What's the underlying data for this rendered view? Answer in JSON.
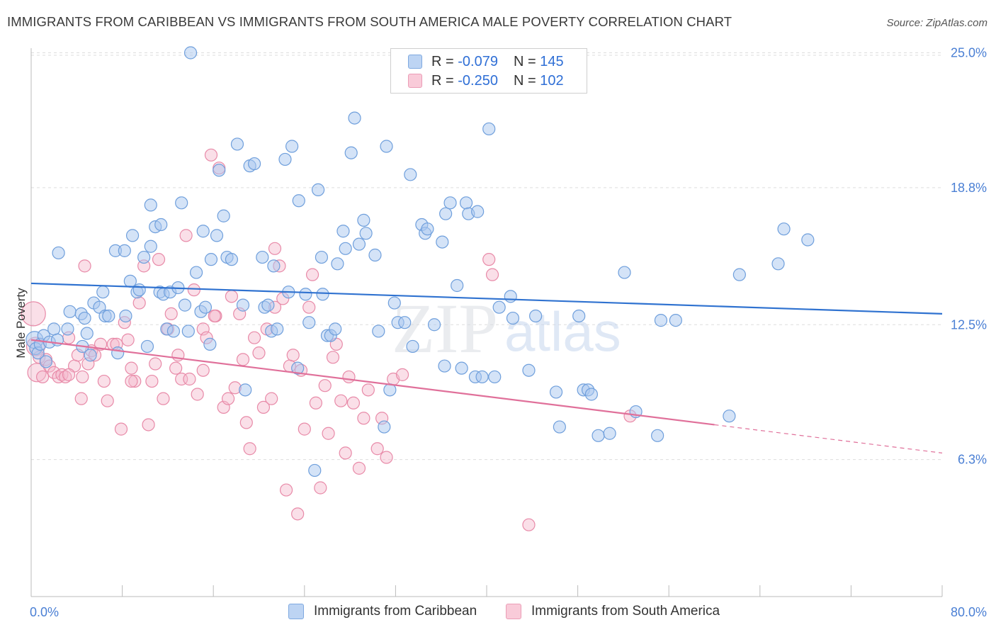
{
  "title": "IMMIGRANTS FROM CARIBBEAN VS IMMIGRANTS FROM SOUTH AMERICA MALE POVERTY CORRELATION CHART",
  "source": "Source: ZipAtlas.com",
  "watermark": {
    "zip": "ZIP",
    "atlas": "atlas"
  },
  "legend": {
    "rows": [
      {
        "r_label": "R = ",
        "r_value": "-0.079",
        "n_label": "N = ",
        "n_value": "145"
      },
      {
        "r_label": "R = ",
        "r_value": "-0.250",
        "n_label": "N = ",
        "n_value": "102"
      }
    ]
  },
  "colors": {
    "blue_fill": "#aac8f0",
    "blue_stroke": "#6f9fdc",
    "blue_line": "#2f72d0",
    "pink_fill": "#f5b8cc",
    "pink_stroke": "#e88aa8",
    "pink_line": "#e0709a",
    "axis_text": "#4a7fd4",
    "grid": "#dddddd"
  },
  "chart_data": {
    "type": "scatter",
    "title": "IMMIGRANTS FROM CARIBBEAN VS IMMIGRANTS FROM SOUTH AMERICA MALE POVERTY CORRELATION CHART",
    "xlabel": "",
    "ylabel": "Male Poverty",
    "xlim": [
      0,
      80
    ],
    "ylim": [
      0,
      26.5
    ],
    "x_tick_labels": [
      "0.0%",
      "80.0%"
    ],
    "y_ticks": [
      6.3,
      12.5,
      18.8,
      25.0
    ],
    "y_tick_labels": [
      "6.3%",
      "12.5%",
      "18.8%",
      "25.0%"
    ],
    "grid": true,
    "legend_position": "top-center",
    "series": [
      {
        "name": "Immigrants from Caribbean",
        "color": "#aac8f0",
        "trend": {
          "x": [
            0,
            80
          ],
          "y": [
            14.4,
            13.0
          ]
        },
        "points": [
          [
            0.3,
            11.8
          ],
          [
            0.4,
            11.4
          ],
          [
            0.6,
            11.2
          ],
          [
            0.8,
            11.6
          ],
          [
            1.1,
            12.0
          ],
          [
            1.3,
            10.8
          ],
          [
            1.6,
            11.7
          ],
          [
            2.0,
            12.3
          ],
          [
            2.3,
            11.8
          ],
          [
            2.4,
            15.8
          ],
          [
            3.2,
            12.3
          ],
          [
            3.4,
            13.1
          ],
          [
            4.4,
            13.0
          ],
          [
            4.5,
            11.5
          ],
          [
            4.7,
            12.8
          ],
          [
            4.9,
            12.1
          ],
          [
            5.2,
            11.1
          ],
          [
            5.5,
            13.5
          ],
          [
            6.0,
            13.3
          ],
          [
            6.3,
            14.0
          ],
          [
            6.5,
            12.9
          ],
          [
            6.8,
            12.9
          ],
          [
            7.4,
            15.9
          ],
          [
            7.6,
            11.2
          ],
          [
            8.2,
            15.9
          ],
          [
            8.3,
            12.9
          ],
          [
            8.7,
            14.5
          ],
          [
            8.9,
            16.6
          ],
          [
            9.3,
            14.0
          ],
          [
            9.5,
            14.1
          ],
          [
            9.9,
            15.6
          ],
          [
            10.2,
            11.5
          ],
          [
            10.5,
            16.1
          ],
          [
            10.5,
            18.0
          ],
          [
            10.9,
            17.0
          ],
          [
            11.3,
            14.0
          ],
          [
            11.4,
            17.1
          ],
          [
            11.6,
            13.9
          ],
          [
            11.9,
            12.3
          ],
          [
            12.2,
            14.0
          ],
          [
            12.5,
            12.2
          ],
          [
            12.9,
            14.2
          ],
          [
            13.2,
            18.1
          ],
          [
            13.5,
            13.4
          ],
          [
            13.8,
            12.2
          ],
          [
            14.0,
            25.0
          ],
          [
            14.5,
            14.9
          ],
          [
            14.9,
            13.1
          ],
          [
            15.1,
            16.8
          ],
          [
            15.3,
            13.3
          ],
          [
            15.7,
            11.6
          ],
          [
            15.8,
            15.5
          ],
          [
            16.3,
            16.6
          ],
          [
            16.5,
            19.6
          ],
          [
            16.9,
            17.5
          ],
          [
            17.2,
            15.6
          ],
          [
            17.6,
            15.5
          ],
          [
            18.1,
            20.8
          ],
          [
            18.6,
            13.4
          ],
          [
            18.8,
            9.5
          ],
          [
            19.2,
            19.8
          ],
          [
            19.6,
            19.9
          ],
          [
            20.3,
            15.6
          ],
          [
            20.5,
            13.3
          ],
          [
            20.8,
            13.4
          ],
          [
            21.1,
            12.2
          ],
          [
            21.3,
            15.2
          ],
          [
            21.6,
            12.3
          ],
          [
            22.3,
            20.1
          ],
          [
            22.6,
            14.0
          ],
          [
            22.9,
            20.7
          ],
          [
            23.4,
            10.5
          ],
          [
            23.5,
            18.2
          ],
          [
            24.1,
            13.9
          ],
          [
            24.4,
            12.6
          ],
          [
            24.9,
            5.8
          ],
          [
            25.2,
            18.7
          ],
          [
            25.5,
            15.6
          ],
          [
            25.6,
            13.9
          ],
          [
            26.0,
            12.0
          ],
          [
            26.3,
            12.0
          ],
          [
            26.7,
            12.3
          ],
          [
            26.9,
            15.3
          ],
          [
            27.4,
            16.8
          ],
          [
            27.6,
            16.0
          ],
          [
            28.1,
            20.4
          ],
          [
            28.4,
            22.0
          ],
          [
            28.8,
            16.2
          ],
          [
            29.2,
            17.3
          ],
          [
            29.4,
            16.7
          ],
          [
            30.2,
            15.7
          ],
          [
            30.5,
            12.2
          ],
          [
            31.0,
            7.8
          ],
          [
            31.2,
            20.7
          ],
          [
            31.5,
            9.5
          ],
          [
            31.9,
            13.5
          ],
          [
            32.2,
            12.6
          ],
          [
            32.8,
            12.6
          ],
          [
            33.3,
            19.4
          ],
          [
            33.5,
            11.5
          ],
          [
            34.3,
            17.1
          ],
          [
            34.6,
            16.7
          ],
          [
            34.8,
            16.9
          ],
          [
            35.4,
            12.5
          ],
          [
            36.1,
            16.3
          ],
          [
            36.3,
            10.6
          ],
          [
            36.4,
            17.6
          ],
          [
            36.8,
            18.1
          ],
          [
            37.4,
            14.3
          ],
          [
            37.8,
            10.5
          ],
          [
            38.2,
            18.1
          ],
          [
            38.4,
            17.6
          ],
          [
            39.0,
            10.1
          ],
          [
            39.2,
            17.7
          ],
          [
            39.6,
            10.1
          ],
          [
            40.2,
            21.5
          ],
          [
            40.7,
            10.1
          ],
          [
            41.1,
            13.3
          ],
          [
            42.1,
            13.8
          ],
          [
            42.3,
            12.8
          ],
          [
            43.7,
            10.4
          ],
          [
            44.3,
            12.9
          ],
          [
            46.1,
            9.4
          ],
          [
            46.4,
            7.8
          ],
          [
            48.1,
            12.9
          ],
          [
            48.5,
            9.5
          ],
          [
            48.9,
            9.5
          ],
          [
            49.2,
            9.3
          ],
          [
            49.8,
            7.4
          ],
          [
            50.8,
            7.5
          ],
          [
            52.1,
            14.9
          ],
          [
            53.1,
            8.5
          ],
          [
            55.0,
            7.4
          ],
          [
            55.3,
            12.7
          ],
          [
            56.6,
            12.7
          ],
          [
            61.3,
            8.3
          ],
          [
            62.2,
            14.8
          ],
          [
            65.6,
            15.3
          ],
          [
            66.1,
            16.9
          ],
          [
            68.2,
            16.4
          ]
        ]
      },
      {
        "name": "Immigrants from South America",
        "color": "#f5b8cc",
        "trend": {
          "x": [
            0,
            60
          ],
          "y": [
            11.8,
            7.9
          ],
          "dashed_to": {
            "x": 80,
            "y": 6.6
          }
        },
        "points": [
          [
            0.2,
            13.0
          ],
          [
            0.4,
            11.5
          ],
          [
            0.5,
            10.3
          ],
          [
            0.7,
            11.0
          ],
          [
            1.0,
            10.1
          ],
          [
            1.3,
            10.9
          ],
          [
            1.6,
            10.6
          ],
          [
            2.0,
            10.3
          ],
          [
            2.4,
            10.1
          ],
          [
            2.7,
            10.2
          ],
          [
            3.0,
            10.1
          ],
          [
            3.3,
            11.9
          ],
          [
            3.8,
            10.6
          ],
          [
            4.1,
            11.1
          ],
          [
            4.4,
            9.1
          ],
          [
            4.7,
            15.2
          ],
          [
            5.0,
            10.7
          ],
          [
            5.3,
            11.3
          ],
          [
            5.6,
            11.1
          ],
          [
            6.1,
            11.6
          ],
          [
            6.4,
            9.9
          ],
          [
            6.7,
            9.0
          ],
          [
            7.2,
            11.6
          ],
          [
            7.5,
            11.6
          ],
          [
            7.9,
            7.7
          ],
          [
            8.2,
            12.6
          ],
          [
            8.5,
            11.8
          ],
          [
            8.8,
            10.5
          ],
          [
            9.1,
            9.9
          ],
          [
            9.5,
            13.5
          ],
          [
            9.9,
            15.2
          ],
          [
            10.3,
            7.9
          ],
          [
            10.6,
            9.9
          ],
          [
            10.9,
            10.7
          ],
          [
            11.2,
            15.5
          ],
          [
            11.6,
            9.1
          ],
          [
            12.0,
            12.3
          ],
          [
            12.3,
            13.0
          ],
          [
            12.7,
            10.5
          ],
          [
            12.9,
            11.1
          ],
          [
            13.2,
            10.0
          ],
          [
            13.6,
            16.6
          ],
          [
            13.9,
            10.0
          ],
          [
            14.3,
            14.1
          ],
          [
            14.6,
            9.3
          ],
          [
            15.1,
            12.3
          ],
          [
            15.4,
            11.9
          ],
          [
            15.8,
            20.3
          ],
          [
            16.2,
            12.9
          ],
          [
            16.5,
            19.7
          ],
          [
            16.9,
            8.7
          ],
          [
            17.3,
            9.1
          ],
          [
            17.6,
            13.8
          ],
          [
            17.9,
            9.6
          ],
          [
            18.3,
            13.0
          ],
          [
            18.6,
            10.9
          ],
          [
            18.9,
            8.0
          ],
          [
            19.2,
            6.8
          ],
          [
            19.6,
            11.9
          ],
          [
            20.0,
            11.2
          ],
          [
            20.4,
            8.7
          ],
          [
            20.7,
            12.3
          ],
          [
            21.1,
            9.1
          ],
          [
            21.4,
            13.3
          ],
          [
            21.8,
            15.2
          ],
          [
            22.1,
            13.7
          ],
          [
            22.4,
            4.9
          ],
          [
            22.7,
            10.6
          ],
          [
            23.0,
            11.1
          ],
          [
            23.4,
            3.8
          ],
          [
            23.7,
            10.4
          ],
          [
            24.0,
            7.7
          ],
          [
            24.4,
            13.3
          ],
          [
            24.7,
            14.8
          ],
          [
            25.0,
            8.9
          ],
          [
            25.4,
            5.0
          ],
          [
            25.8,
            9.7
          ],
          [
            26.1,
            7.5
          ],
          [
            26.5,
            11.0
          ],
          [
            26.8,
            11.6
          ],
          [
            27.2,
            9.0
          ],
          [
            27.6,
            6.6
          ],
          [
            27.9,
            10.1
          ],
          [
            28.3,
            8.9
          ],
          [
            28.8,
            5.9
          ],
          [
            29.2,
            8.2
          ],
          [
            29.6,
            9.5
          ],
          [
            30.4,
            6.8
          ],
          [
            30.8,
            8.2
          ],
          [
            31.2,
            6.4
          ],
          [
            31.8,
            10.0
          ],
          [
            43.7,
            3.3
          ],
          [
            52.6,
            8.3
          ],
          [
            3.3,
            10.2
          ],
          [
            4.5,
            10.1
          ],
          [
            8.8,
            9.9
          ],
          [
            16.1,
            12.9
          ],
          [
            21.4,
            16.0
          ],
          [
            40.2,
            15.5
          ],
          [
            40.5,
            14.8
          ],
          [
            15.1,
            10.4
          ],
          [
            32.6,
            10.2
          ]
        ]
      }
    ]
  },
  "bottom_legend": {
    "items": [
      {
        "label": "Immigrants from Caribbean"
      },
      {
        "label": "Immigrants from South America"
      }
    ]
  },
  "axis": {
    "ylabel": "Male Poverty",
    "x_left": "0.0%",
    "x_right": "80.0%"
  }
}
